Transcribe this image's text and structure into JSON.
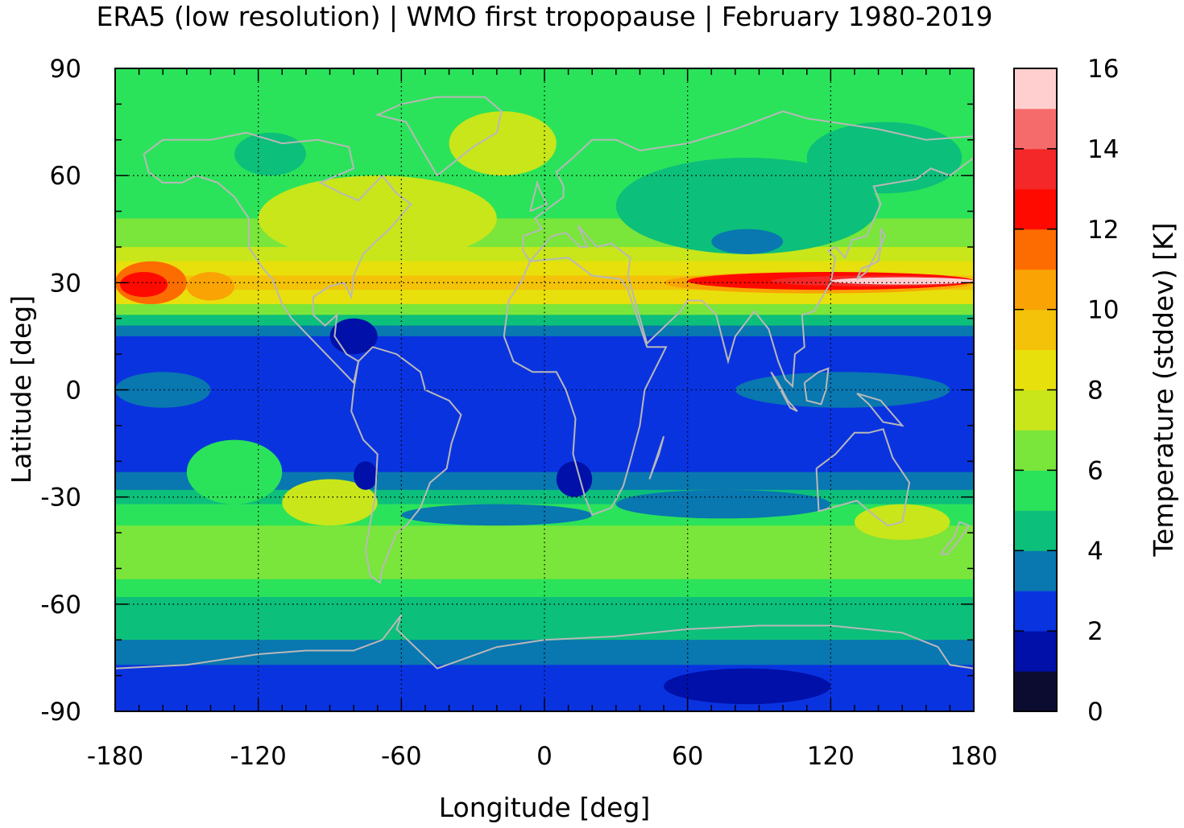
{
  "chart_data": {
    "type": "heatmap",
    "title": "ERA5 (low resolution) | WMO first tropopause | February 1980-2019",
    "xlabel": "Longitude [deg]",
    "ylabel": "Latitude [deg]",
    "colorbar_label": "Temperature (stddev) [K]",
    "xlim": [
      -180,
      180
    ],
    "ylim": [
      -90,
      90
    ],
    "x_ticks": [
      -180,
      -120,
      -60,
      0,
      60,
      120,
      180
    ],
    "x_tick_labels": [
      "-180",
      "-120",
      "-60",
      "0",
      "60",
      "120",
      "180"
    ],
    "y_ticks": [
      90,
      60,
      30,
      0,
      -30,
      -60,
      -90
    ],
    "y_tick_labels": [
      "90",
      "60",
      "30",
      "0",
      "-30",
      "-60",
      "-90"
    ],
    "colorbar_range": [
      0,
      16
    ],
    "colorbar_ticks": [
      0,
      2,
      4,
      6,
      8,
      10,
      12,
      14,
      16
    ],
    "colorbar_tick_labels": [
      "0",
      "2",
      "4",
      "6",
      "8",
      "10",
      "12",
      "14",
      "16"
    ],
    "color_levels": [
      {
        "from": 0,
        "to": 1,
        "color": "#0b0c30"
      },
      {
        "from": 1,
        "to": 2,
        "color": "#0010a8"
      },
      {
        "from": 2,
        "to": 3,
        "color": "#0a33e0"
      },
      {
        "from": 3,
        "to": 4,
        "color": "#0977b0"
      },
      {
        "from": 4,
        "to": 5,
        "color": "#0cbf7a"
      },
      {
        "from": 5,
        "to": 6,
        "color": "#2be35a"
      },
      {
        "from": 6,
        "to": 7,
        "color": "#7ae53a"
      },
      {
        "from": 7,
        "to": 8,
        "color": "#c8e61a"
      },
      {
        "from": 8,
        "to": 9,
        "color": "#e8e00c"
      },
      {
        "from": 9,
        "to": 10,
        "color": "#f3c209"
      },
      {
        "from": 10,
        "to": 11,
        "color": "#f9a304"
      },
      {
        "from": 11,
        "to": 12,
        "color": "#fd6c00"
      },
      {
        "from": 12,
        "to": 13,
        "color": "#ff0a00"
      },
      {
        "from": 13,
        "to": 14,
        "color": "#f42828"
      },
      {
        "from": 14,
        "to": 15,
        "color": "#f56b6b"
      },
      {
        "from": 15,
        "to": 16,
        "color": "#ffcfcf"
      }
    ],
    "grid": true,
    "legend": "colorbar-right",
    "bands": [
      {
        "lat": [
          75,
          90
        ],
        "value": 5.5
      },
      {
        "lat": [
          60,
          75
        ],
        "value": 5.2
      },
      {
        "lat": [
          48,
          60
        ],
        "value": 5.6
      },
      {
        "lat": [
          40,
          48
        ],
        "value": 6.3
      },
      {
        "lat": [
          36,
          40
        ],
        "value": 7.3
      },
      {
        "lat": [
          32,
          36
        ],
        "value": 8.4
      },
      {
        "lat": [
          28,
          32
        ],
        "value": 9.2
      },
      {
        "lat": [
          24,
          28
        ],
        "value": 8.2
      },
      {
        "lat": [
          21,
          24
        ],
        "value": 6.4
      },
      {
        "lat": [
          18,
          21
        ],
        "value": 4.5
      },
      {
        "lat": [
          15,
          18
        ],
        "value": 3.5
      },
      {
        "lat": [
          -18,
          15
        ],
        "value": 2.5
      },
      {
        "lat": [
          -23,
          -18
        ],
        "value": 2.7
      },
      {
        "lat": [
          -28,
          -23
        ],
        "value": 3.6
      },
      {
        "lat": [
          -32,
          -28
        ],
        "value": 4.5
      },
      {
        "lat": [
          -38,
          -32
        ],
        "value": 5.5
      },
      {
        "lat": [
          -48,
          -38
        ],
        "value": 6.3
      },
      {
        "lat": [
          -53,
          -48
        ],
        "value": 6.4
      },
      {
        "lat": [
          -58,
          -53
        ],
        "value": 5.6
      },
      {
        "lat": [
          -63,
          -58
        ],
        "value": 4.6
      },
      {
        "lat": [
          -70,
          -63
        ],
        "value": 4.3
      },
      {
        "lat": [
          -77,
          -70
        ],
        "value": 3.5
      },
      {
        "lat": [
          -90,
          -77
        ],
        "value": 2.6
      }
    ],
    "regions": [
      {
        "lon": [
          -180,
          -150
        ],
        "lat": [
          24,
          36
        ],
        "value": 11.5
      },
      {
        "lon": [
          -178,
          -158
        ],
        "lat": [
          26,
          33
        ],
        "value": 12.5
      },
      {
        "lon": [
          -150,
          -130
        ],
        "lat": [
          25,
          33
        ],
        "value": 10.3
      },
      {
        "lon": [
          -120,
          -20
        ],
        "lat": [
          36,
          60
        ],
        "value": 7.4
      },
      {
        "lon": [
          -40,
          5
        ],
        "lat": [
          60,
          78
        ],
        "value": 7.6
      },
      {
        "lon": [
          -130,
          -100
        ],
        "lat": [
          60,
          72
        ],
        "value": 4.6
      },
      {
        "lon": [
          30,
          140
        ],
        "lat": [
          38,
          65
        ],
        "value": 4.6
      },
      {
        "lon": [
          70,
          100
        ],
        "lat": [
          38,
          45
        ],
        "value": 3.6
      },
      {
        "lon": [
          110,
          175
        ],
        "lat": [
          55,
          75
        ],
        "value": 4.6
      },
      {
        "lon": [
          50,
          180
        ],
        "lat": [
          27,
          33
        ],
        "value": 10.5
      },
      {
        "lon": [
          60,
          180
        ],
        "lat": [
          28,
          33
        ],
        "value": 12.5
      },
      {
        "lon": [
          95,
          180
        ],
        "lat": [
          29,
          32
        ],
        "value": 13.6
      },
      {
        "lon": [
          120,
          180
        ],
        "lat": [
          29.5,
          31.5
        ],
        "value": 15.5
      },
      {
        "lon": [
          -90,
          -70
        ],
        "lat": [
          10,
          20
        ],
        "value": 1.5
      },
      {
        "lon": [
          80,
          170
        ],
        "lat": [
          -5,
          5
        ],
        "value": 3.5
      },
      {
        "lon": [
          -180,
          -140
        ],
        "lat": [
          -5,
          5
        ],
        "value": 3.2
      },
      {
        "lon": [
          -60,
          20
        ],
        "lat": [
          -38,
          -32
        ],
        "value": 3.6
      },
      {
        "lon": [
          30,
          120
        ],
        "lat": [
          -36,
          -28
        ],
        "value": 3.5
      },
      {
        "lon": [
          -150,
          -110
        ],
        "lat": [
          -32,
          -14
        ],
        "value": 5.5
      },
      {
        "lon": [
          -110,
          -70
        ],
        "lat": [
          -38,
          -25
        ],
        "value": 7.4
      },
      {
        "lon": [
          130,
          170
        ],
        "lat": [
          -42,
          -32
        ],
        "value": 7.3
      },
      {
        "lon": [
          -80,
          -70
        ],
        "lat": [
          -28,
          -20
        ],
        "value": 1.5
      },
      {
        "lon": [
          5,
          20
        ],
        "lat": [
          -30,
          -20
        ],
        "value": 1.5
      },
      {
        "lon": [
          50,
          120
        ],
        "lat": [
          -88,
          -78
        ],
        "value": 1.5
      }
    ]
  }
}
